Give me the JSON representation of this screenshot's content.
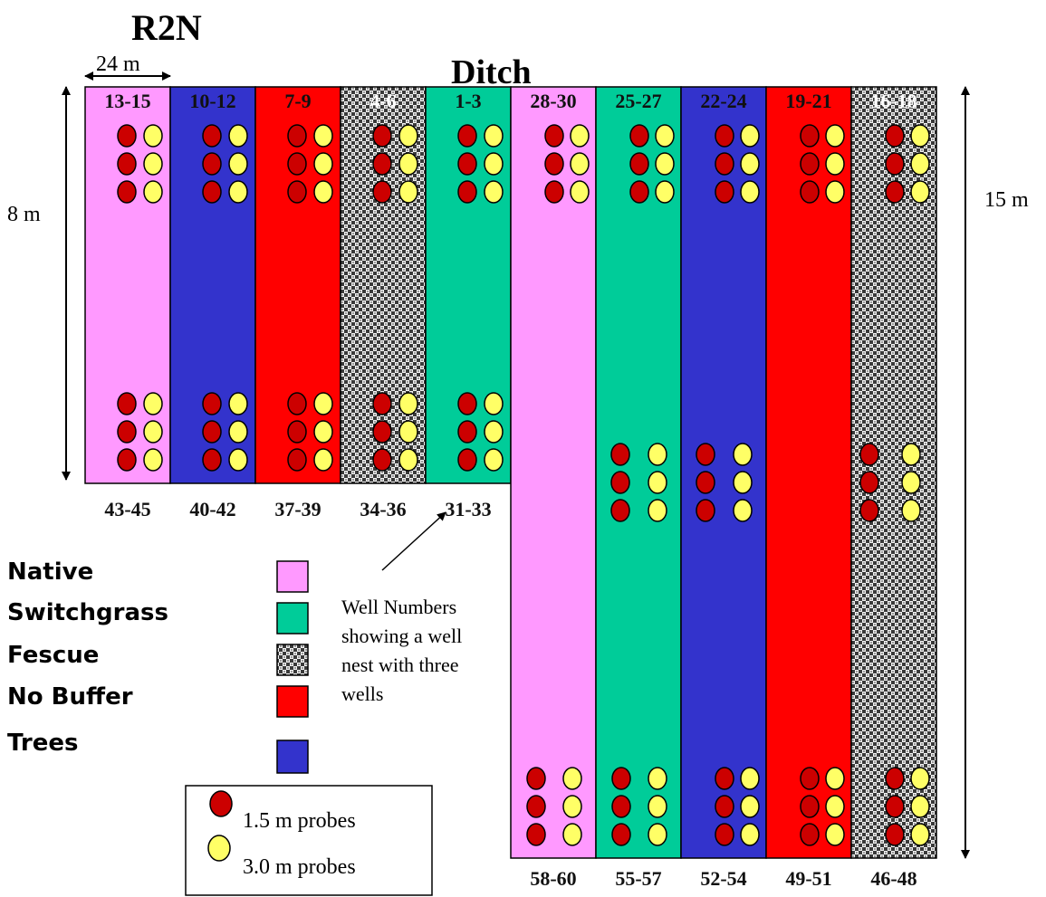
{
  "site": "R2N",
  "ditch_label": "Ditch",
  "width_label": "24 m",
  "left_height_label": "8 m",
  "right_height_label": "15 m",
  "legend": {
    "buffers": [
      {
        "key": "native",
        "label": "Native",
        "color": "#ff99ff"
      },
      {
        "key": "switchgrass",
        "label": "Switchgrass",
        "color": "#00cc99"
      },
      {
        "key": "fescue",
        "label": "Fescue",
        "color": "pattern"
      },
      {
        "key": "nobuffer",
        "label": "No Buffer",
        "color": "#ff0000"
      },
      {
        "key": "trees",
        "label": "Trees",
        "color": "#3333cc"
      }
    ],
    "probes": [
      {
        "key": "p15",
        "label": "1.5 m probes",
        "color": "#cc0000"
      },
      {
        "key": "p30",
        "label": "3.0 m probes",
        "color": "#ffff66"
      }
    ]
  },
  "annotation": {
    "lines": [
      "Well Numbers",
      "showing a well",
      "nest with three",
      "wells"
    ]
  },
  "left_plots": [
    {
      "buffer": "native",
      "top_wells": "13-15",
      "bottom_wells": "43-45"
    },
    {
      "buffer": "trees",
      "top_wells": "10-12",
      "bottom_wells": "40-42"
    },
    {
      "buffer": "nobuffer",
      "top_wells": "7-9",
      "bottom_wells": "37-39"
    },
    {
      "buffer": "fescue",
      "top_wells": "4-6",
      "bottom_wells": "34-36"
    },
    {
      "buffer": "switchgrass",
      "top_wells": "1-3",
      "bottom_wells": "31-33"
    }
  ],
  "right_plots": [
    {
      "buffer": "native",
      "top_wells": "28-30",
      "bottom_wells": "58-60",
      "has_middle_nest": false
    },
    {
      "buffer": "switchgrass",
      "top_wells": "25-27",
      "bottom_wells": "55-57",
      "has_middle_nest": true
    },
    {
      "buffer": "trees",
      "top_wells": "22-24",
      "bottom_wells": "52-54",
      "has_middle_nest": true
    },
    {
      "buffer": "nobuffer",
      "top_wells": "19-21",
      "bottom_wells": "49-51",
      "has_middle_nest": false
    },
    {
      "buffer": "fescue",
      "top_wells": "16-18",
      "bottom_wells": "46-48",
      "has_middle_nest": true
    }
  ]
}
